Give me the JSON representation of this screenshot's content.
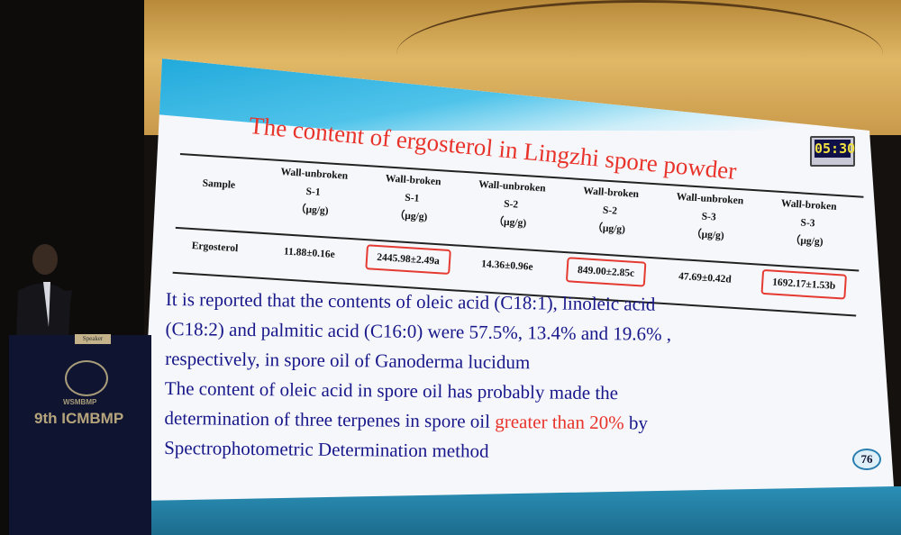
{
  "slide": {
    "title": "The content of ergosterol  in Lingzhi spore powder",
    "timer": "05:30",
    "table": {
      "row_header": "Sample",
      "columns": [
        {
          "type": "Wall-unbroken",
          "sample": "S-1",
          "unit": "（μg/g)"
        },
        {
          "type": "Wall-broken",
          "sample": "S-1",
          "unit": "（μg/g)"
        },
        {
          "type": "Wall-unbroken",
          "sample": "S-2",
          "unit": "（μg/g)"
        },
        {
          "type": "Wall-broken",
          "sample": "S-2",
          "unit": "（μg/g)"
        },
        {
          "type": "Wall-unbroken",
          "sample": "S-3",
          "unit": "（μg/g)"
        },
        {
          "type": "Wall-broken",
          "sample": "S-3",
          "unit": "（μg/g)"
        }
      ],
      "row_label": "Ergosterol",
      "values": [
        "11.88±0.16e",
        "2445.98±2.49a",
        "14.36±0.96e",
        "849.00±2.85c",
        "47.69±0.42d",
        "1692.17±1.53b"
      ],
      "highlighted": [
        false,
        true,
        false,
        true,
        false,
        true
      ]
    },
    "body_lines": [
      "It is reported that the contents of oleic acid (C18:1), linoleic acid",
      "(C18:2) and palmitic acid (C16:0) were 57.5%, 13.4% and 19.6% ,",
      "respectively, in spore oil of Ganoderma lucidum",
      "The content of oleic acid in spore oil has probably made the",
      "determination of three terpenes in spore oil "
    ],
    "highlight_text": "greater than 20%",
    "line5_tail": " by",
    "last_line": "Spectrophotometric Determination method",
    "page_number": "76",
    "colors": {
      "title": "#e8332a",
      "body": "#17178a",
      "highlight_box": "#e53a32"
    }
  },
  "podium": {
    "sign": "Speaker",
    "logo_text": "WSMBMP",
    "conference": "9th ICMBMP"
  }
}
